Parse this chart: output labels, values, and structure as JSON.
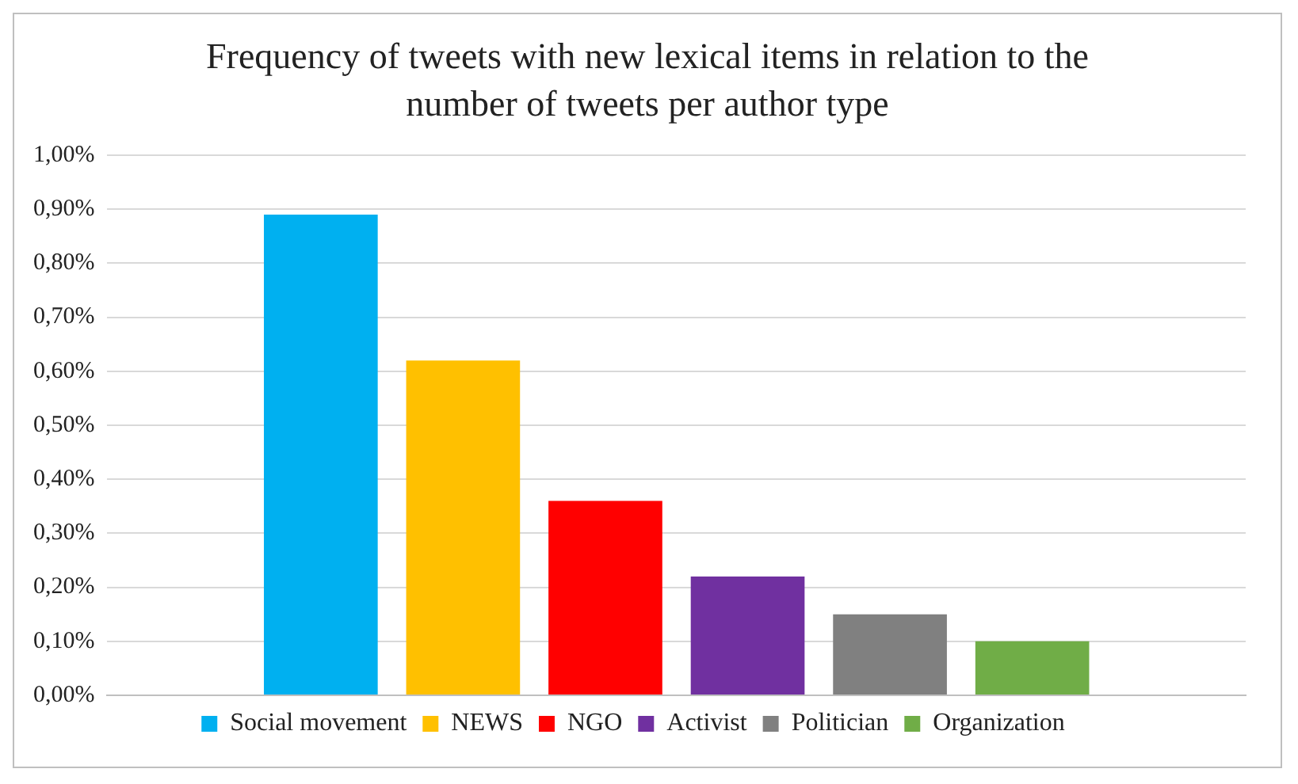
{
  "chart_data": {
    "type": "bar",
    "title": "Frequency of tweets with new lexical items in relation to the number of tweets per author type",
    "categories": [
      null
    ],
    "series": [
      {
        "name": "Social movement",
        "color": "#00b0f0",
        "values": [
          0.89
        ]
      },
      {
        "name": "NEWS",
        "color": "#ffc000",
        "values": [
          0.62
        ]
      },
      {
        "name": "NGO",
        "color": "#ff0000",
        "values": [
          0.36
        ]
      },
      {
        "name": "Activist",
        "color": "#7030a0",
        "values": [
          0.22
        ]
      },
      {
        "name": "Politician",
        "color": "#808080",
        "values": [
          0.15
        ]
      },
      {
        "name": "Organization",
        "color": "#70ad47",
        "values": [
          0.1
        ]
      }
    ],
    "ylim": [
      0,
      1
    ],
    "yticks": [
      {
        "value": 0,
        "label": "0,00%"
      },
      {
        "value": 0.1,
        "label": "0,10%"
      },
      {
        "value": 0.2,
        "label": "0,20%"
      },
      {
        "value": 0.3,
        "label": "0,30%"
      },
      {
        "value": 0.4,
        "label": "0,40%"
      },
      {
        "value": 0.5,
        "label": "0,50%"
      },
      {
        "value": 0.6,
        "label": "0,60%"
      },
      {
        "value": 0.7,
        "label": "0,70%"
      },
      {
        "value": 0.8,
        "label": "0,80%"
      },
      {
        "value": 0.9,
        "label": "0,90%"
      },
      {
        "value": 1,
        "label": "1,00%"
      }
    ],
    "grid": "y",
    "legend": "bottom",
    "tick_labels": "y"
  }
}
